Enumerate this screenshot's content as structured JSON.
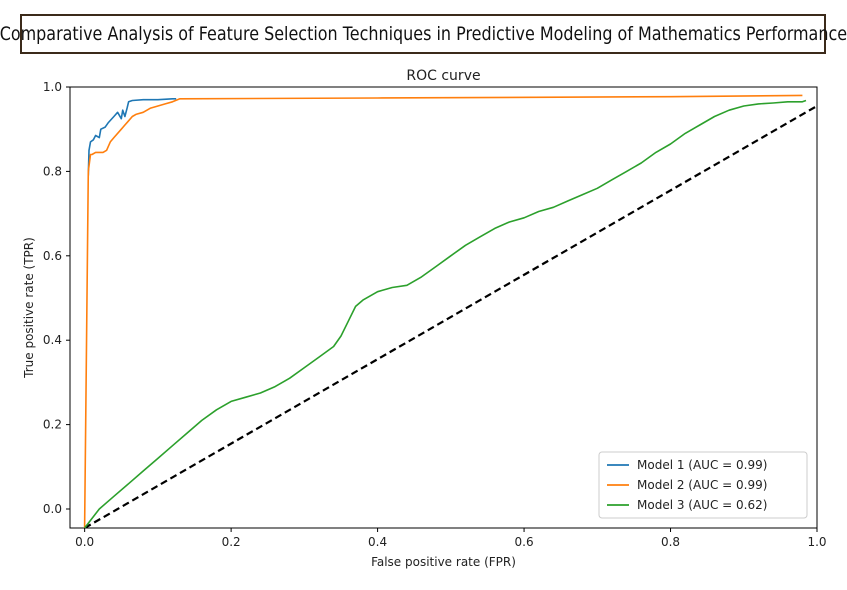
{
  "banner": {
    "title": "Comparative Analysis of Feature Selection Techniques in Predictive Modeling of Mathematics Performance"
  },
  "chart_data": {
    "type": "line",
    "title": "ROC curve",
    "xlabel": "False positive rate (FPR)",
    "ylabel": "True positive rate (TPR)",
    "xlim": [
      -0.02,
      1.0
    ],
    "ylim": [
      -0.045,
      1.0
    ],
    "xticks": [
      0.0,
      0.2,
      0.4,
      0.6,
      0.8,
      1.0
    ],
    "xtick_labels": [
      "0.0",
      "0.2",
      "0.4",
      "0.6",
      "0.8",
      "1.0"
    ],
    "yticks": [
      0.0,
      0.2,
      0.4,
      0.6,
      0.8,
      1.0
    ],
    "ytick_labels": [
      "0.0",
      "0.2",
      "0.4",
      "0.6",
      "0.8",
      "1.0"
    ],
    "legend_position": "lower-right",
    "grid": false,
    "series": [
      {
        "name": "Model 1 (AUC = 0.99)",
        "color": "#1f77b4",
        "x": [
          0.005,
          0.006,
          0.008,
          0.012,
          0.015,
          0.02,
          0.022,
          0.028,
          0.032,
          0.04,
          0.045,
          0.05,
          0.052,
          0.055,
          0.058,
          0.06,
          0.065,
          0.08,
          0.1,
          0.12,
          0.125
        ],
        "y": [
          0.79,
          0.85,
          0.87,
          0.875,
          0.885,
          0.88,
          0.9,
          0.905,
          0.915,
          0.93,
          0.94,
          0.925,
          0.945,
          0.93,
          0.95,
          0.965,
          0.968,
          0.97,
          0.97,
          0.972,
          0.972
        ]
      },
      {
        "name": "Model 2 (AUC = 0.99)",
        "color": "#ff7f0e",
        "x": [
          0.0,
          0.005,
          0.008,
          0.01,
          0.015,
          0.02,
          0.025,
          0.03,
          0.035,
          0.04,
          0.05,
          0.055,
          0.06,
          0.065,
          0.07,
          0.08,
          0.09,
          0.1,
          0.11,
          0.12,
          0.13,
          0.4,
          0.8,
          0.98
        ],
        "y": [
          -0.045,
          0.8,
          0.84,
          0.84,
          0.845,
          0.845,
          0.845,
          0.85,
          0.87,
          0.88,
          0.9,
          0.91,
          0.92,
          0.93,
          0.935,
          0.94,
          0.95,
          0.955,
          0.96,
          0.965,
          0.972,
          0.974,
          0.977,
          0.98
        ]
      },
      {
        "name": "Model 3 (AUC = 0.62)",
        "color": "#2ca02c",
        "x": [
          0.0,
          0.02,
          0.04,
          0.06,
          0.08,
          0.1,
          0.12,
          0.14,
          0.16,
          0.18,
          0.2,
          0.22,
          0.24,
          0.26,
          0.28,
          0.3,
          0.32,
          0.34,
          0.35,
          0.36,
          0.37,
          0.38,
          0.4,
          0.42,
          0.44,
          0.46,
          0.48,
          0.5,
          0.52,
          0.54,
          0.56,
          0.58,
          0.6,
          0.62,
          0.64,
          0.66,
          0.68,
          0.7,
          0.72,
          0.74,
          0.76,
          0.78,
          0.8,
          0.82,
          0.84,
          0.86,
          0.88,
          0.9,
          0.92,
          0.94,
          0.96,
          0.98,
          0.985
        ],
        "y": [
          -0.045,
          0.0,
          0.03,
          0.06,
          0.09,
          0.12,
          0.15,
          0.18,
          0.21,
          0.235,
          0.255,
          0.265,
          0.275,
          0.29,
          0.31,
          0.335,
          0.36,
          0.385,
          0.41,
          0.445,
          0.48,
          0.495,
          0.515,
          0.525,
          0.53,
          0.55,
          0.575,
          0.6,
          0.625,
          0.645,
          0.665,
          0.68,
          0.69,
          0.705,
          0.715,
          0.73,
          0.745,
          0.76,
          0.78,
          0.8,
          0.82,
          0.845,
          0.865,
          0.89,
          0.91,
          0.93,
          0.945,
          0.955,
          0.96,
          0.962,
          0.965,
          0.965,
          0.968
        ]
      }
    ],
    "reference_line": {
      "x": [
        0.0,
        1.0
      ],
      "y": [
        -0.045,
        0.955
      ],
      "color": "#000000",
      "style": "dashed"
    }
  }
}
